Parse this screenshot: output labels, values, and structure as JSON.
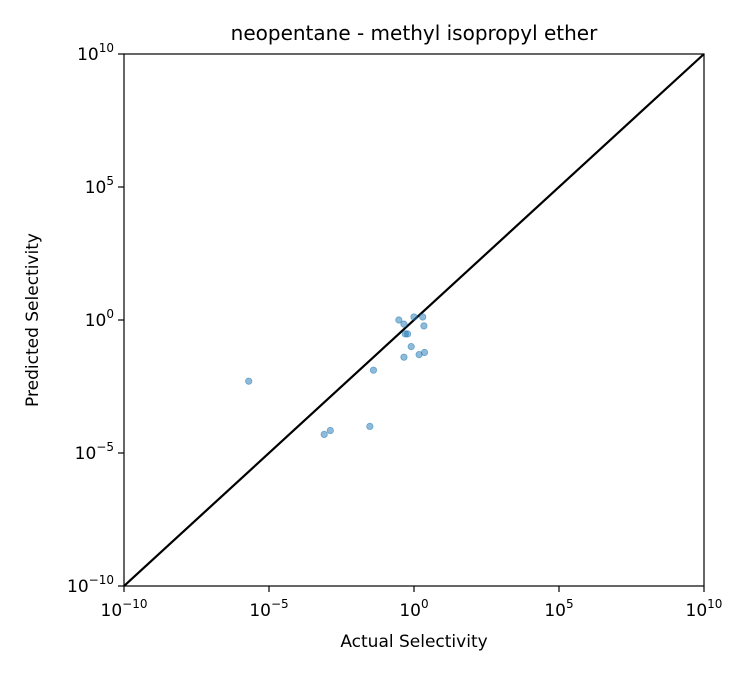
{
  "chart_data": {
    "type": "scatter",
    "title": "neopentane - methyl isopropyl ether",
    "xlabel": "Actual Selectivity",
    "ylabel": "Predicted Selectivity",
    "xscale": "log",
    "yscale": "log",
    "xlim": [
      1e-10,
      10000000000.0
    ],
    "ylim": [
      1e-10,
      10000000000.0
    ],
    "x_ticks": [
      {
        "base": "10",
        "exp": "−10"
      },
      {
        "base": "10",
        "exp": "−5"
      },
      {
        "base": "10",
        "exp": "0"
      },
      {
        "base": "10",
        "exp": "5"
      },
      {
        "base": "10",
        "exp": "10"
      }
    ],
    "y_ticks": [
      {
        "base": "10",
        "exp": "−10"
      },
      {
        "base": "10",
        "exp": "−5"
      },
      {
        "base": "10",
        "exp": "0"
      },
      {
        "base": "10",
        "exp": "5"
      },
      {
        "base": "10",
        "exp": "10"
      }
    ],
    "reference_line": {
      "type": "y=x",
      "color": "#000000"
    },
    "grid": false,
    "marker_color": "#1f77b4",
    "points": [
      {
        "x": 2e-06,
        "y": 0.005
      },
      {
        "x": 0.0008,
        "y": 5e-05
      },
      {
        "x": 0.0013,
        "y": 7e-05
      },
      {
        "x": 0.03,
        "y": 0.0001
      },
      {
        "x": 0.04,
        "y": 0.013
      },
      {
        "x": 0.3,
        "y": 1.0
      },
      {
        "x": 0.45,
        "y": 0.7
      },
      {
        "x": 0.5,
        "y": 0.3
      },
      {
        "x": 0.6,
        "y": 0.3
      },
      {
        "x": 0.8,
        "y": 0.1
      },
      {
        "x": 1.0,
        "y": 1.3
      },
      {
        "x": 0.45,
        "y": 0.04
      },
      {
        "x": 1.5,
        "y": 0.05
      },
      {
        "x": 2.0,
        "y": 1.3
      },
      {
        "x": 2.2,
        "y": 0.6
      },
      {
        "x": 2.3,
        "y": 0.06
      }
    ]
  }
}
